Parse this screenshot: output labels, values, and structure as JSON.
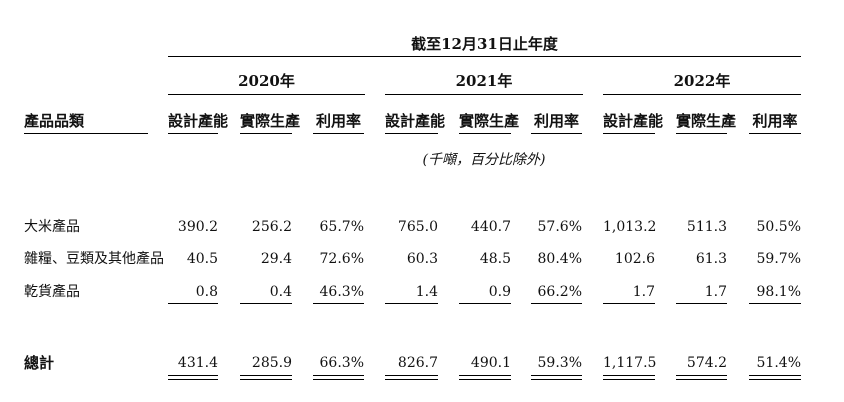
{
  "title": "截至12月31日止年度",
  "years": [
    "2020年",
    "2021年",
    "2022年"
  ],
  "category_header": "產品品類",
  "col_headers": [
    "設計產能",
    "實際生產",
    "利用率",
    "設計產能",
    "實際生產",
    "利用率",
    "設計產能",
    "實際生產",
    "利用率"
  ],
  "unit_note": "(千噸，百分比除外)",
  "rows": [
    {
      "label": "大米產品",
      "values": [
        "390.2",
        "256.2",
        "65.7%",
        "765.0",
        "440.7",
        "57.6%",
        "1,013.2",
        "511.3",
        "50.5%"
      ]
    },
    {
      "label": "雜糧、豆類及其他產品",
      "values": [
        "40.5",
        "29.4",
        "72.6%",
        "60.3",
        "48.5",
        "80.4%",
        "102.6",
        "61.3",
        "59.7%"
      ]
    },
    {
      "label": "乾貨產品",
      "values": [
        "0.8",
        "0.4",
        "46.3%",
        "1.4",
        "0.9",
        "66.2%",
        "1.7",
        "1.7",
        "98.1%"
      ]
    }
  ],
  "total": {
    "label": "總計",
    "values": [
      "431.4",
      "285.9",
      "66.3%",
      "826.7",
      "490.1",
      "59.3%",
      "1,117.5",
      "574.2",
      "51.4%"
    ]
  }
}
